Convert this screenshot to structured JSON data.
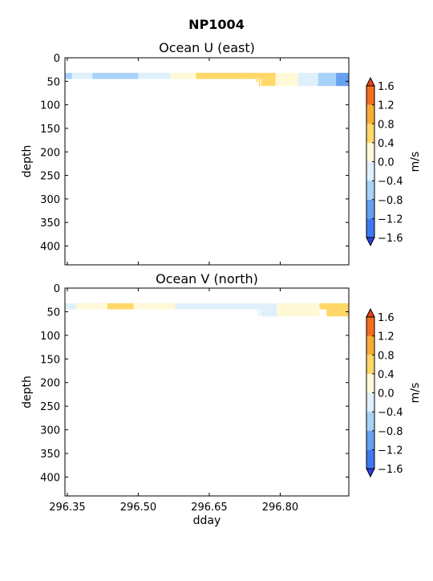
{
  "figure": {
    "title": "NP1004"
  },
  "chart_data": [
    {
      "type": "heatmap",
      "title": "Ocean U (east)",
      "xlabel": "",
      "ylabel": "depth",
      "xlim": [
        296.345,
        296.945
      ],
      "ylim": [
        440,
        0
      ],
      "yticks": [
        0,
        50,
        100,
        150,
        200,
        250,
        300,
        350,
        400
      ],
      "xticks": [],
      "colorbar": {
        "label": "m/s",
        "levels": [
          -1.6,
          -1.2,
          -0.8,
          -0.4,
          0.0,
          0.4,
          0.8,
          1.2,
          1.6
        ],
        "ticklabels": [
          "1.6",
          "1.2",
          "0.8",
          "0.4",
          "0.0",
          "−0.4",
          "−0.8",
          "−1.2",
          "−1.6"
        ],
        "band_colors": [
          "#2b3fe0",
          "#3f78f0",
          "#68a0f0",
          "#a8d2f8",
          "#dff0fb",
          "#fff9d8",
          "#ffd868",
          "#f7ad34",
          "#f46d1f",
          "#e8431a"
        ]
      },
      "cells": [
        {
          "x0": 296.345,
          "x1": 296.36,
          "d0": 32,
          "d1": 45,
          "value": -0.6
        },
        {
          "x0": 296.36,
          "x1": 296.403,
          "d0": 32,
          "d1": 45,
          "value": -0.3
        },
        {
          "x0": 296.403,
          "x1": 296.5,
          "d0": 32,
          "d1": 45,
          "value": -0.6
        },
        {
          "x0": 296.5,
          "x1": 296.568,
          "d0": 32,
          "d1": 45,
          "value": -0.3
        },
        {
          "x0": 296.568,
          "x1": 296.622,
          "d0": 32,
          "d1": 45,
          "value": 0.2
        },
        {
          "x0": 296.622,
          "x1": 296.72,
          "d0": 32,
          "d1": 45,
          "value": 0.6
        },
        {
          "x0": 296.72,
          "x1": 296.75,
          "d0": 32,
          "d1": 45,
          "value": 0.6
        },
        {
          "x0": 296.75,
          "x1": 296.753,
          "d0": 45,
          "d1": 52,
          "value": 0.6
        },
        {
          "x0": 296.755,
          "x1": 296.758,
          "d0": 45,
          "d1": 60,
          "value": 0.6
        },
        {
          "x0": 296.76,
          "x1": 296.763,
          "d0": 45,
          "d1": 60,
          "value": 0.6
        },
        {
          "x0": 296.763,
          "x1": 296.79,
          "d0": 45,
          "d1": 60,
          "value": 0.6
        },
        {
          "x0": 296.75,
          "x1": 296.79,
          "d0": 32,
          "d1": 45,
          "value": 0.6
        },
        {
          "x0": 296.79,
          "x1": 296.838,
          "d0": 32,
          "d1": 60,
          "value": 0.2
        },
        {
          "x0": 296.838,
          "x1": 296.88,
          "d0": 32,
          "d1": 60,
          "value": -0.3
        },
        {
          "x0": 296.88,
          "x1": 296.918,
          "d0": 32,
          "d1": 60,
          "value": -0.6
        },
        {
          "x0": 296.918,
          "x1": 296.945,
          "d0": 32,
          "d1": 60,
          "value": -1.0
        }
      ]
    },
    {
      "type": "heatmap",
      "title": "Ocean V (north)",
      "xlabel": "dday",
      "ylabel": "depth",
      "xlim": [
        296.345,
        296.945
      ],
      "ylim": [
        440,
        0
      ],
      "yticks": [
        0,
        50,
        100,
        150,
        200,
        250,
        300,
        350,
        400
      ],
      "xticks": [
        296.35,
        296.5,
        296.65,
        296.8
      ],
      "xticklabels": [
        "296.35",
        "296.50",
        "296.65",
        "296.80"
      ],
      "colorbar": {
        "label": "m/s",
        "levels": [
          -1.6,
          -1.2,
          -0.8,
          -0.4,
          0.0,
          0.4,
          0.8,
          1.2,
          1.6
        ],
        "ticklabels": [
          "1.6",
          "1.2",
          "0.8",
          "0.4",
          "0.0",
          "−0.4",
          "−0.8",
          "−1.2",
          "−1.6"
        ],
        "band_colors": [
          "#2b3fe0",
          "#3f78f0",
          "#68a0f0",
          "#a8d2f8",
          "#dff0fb",
          "#fff9d8",
          "#ffd868",
          "#f7ad34",
          "#f46d1f",
          "#e8431a"
        ]
      },
      "cells": [
        {
          "x0": 296.345,
          "x1": 296.368,
          "d0": 32,
          "d1": 45,
          "value": -0.3
        },
        {
          "x0": 296.368,
          "x1": 296.435,
          "d0": 32,
          "d1": 45,
          "value": 0.2
        },
        {
          "x0": 296.435,
          "x1": 296.49,
          "d0": 32,
          "d1": 45,
          "value": 0.6
        },
        {
          "x0": 296.49,
          "x1": 296.578,
          "d0": 32,
          "d1": 45,
          "value": 0.2
        },
        {
          "x0": 296.578,
          "x1": 296.75,
          "d0": 32,
          "d1": 45,
          "value": -0.3
        },
        {
          "x0": 296.75,
          "x1": 296.752,
          "d0": 45,
          "d1": 52,
          "value": -0.3
        },
        {
          "x0": 296.754,
          "x1": 296.757,
          "d0": 45,
          "d1": 60,
          "value": -0.3
        },
        {
          "x0": 296.759,
          "x1": 296.793,
          "d0": 45,
          "d1": 60,
          "value": -0.3
        },
        {
          "x0": 296.75,
          "x1": 296.793,
          "d0": 32,
          "d1": 45,
          "value": -0.3
        },
        {
          "x0": 296.793,
          "x1": 296.883,
          "d0": 32,
          "d1": 60,
          "value": 0.2
        },
        {
          "x0": 296.883,
          "x1": 296.945,
          "d0": 32,
          "d1": 45,
          "value": 0.6
        },
        {
          "x0": 296.898,
          "x1": 296.945,
          "d0": 45,
          "d1": 60,
          "value": 0.6
        }
      ]
    }
  ]
}
